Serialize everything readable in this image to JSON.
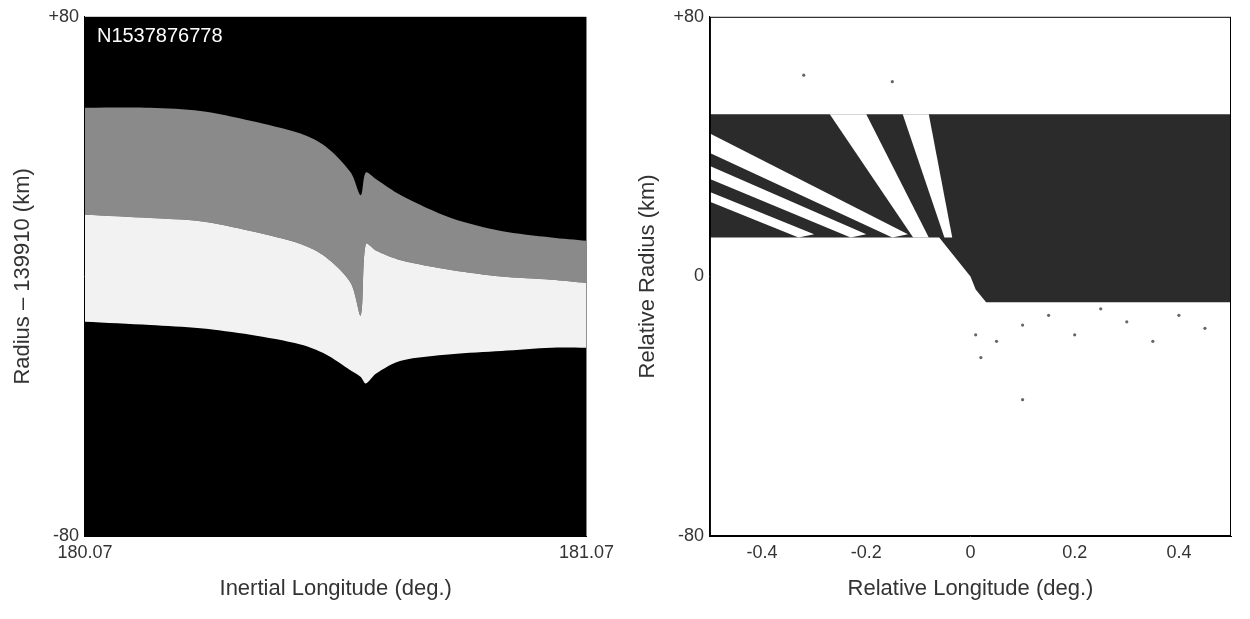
{
  "chart_data": [
    {
      "type": "band",
      "annotation": "N1537876778",
      "x_label": "Inertial Longitude (deg.)",
      "y_label": "Radius – 139910 (km)",
      "xlim": [
        180.07,
        181.07
      ],
      "xticks": [
        180.07,
        181.07
      ],
      "ylim": [
        -80,
        80
      ],
      "yticks": [
        -80,
        {
          "value": 80,
          "label": "+80"
        }
      ],
      "grid": false,
      "x": [
        180.07,
        180.2,
        180.3,
        180.4,
        180.5,
        180.55,
        180.6,
        180.62,
        180.63,
        180.65,
        180.7,
        180.8,
        180.9,
        181.0,
        181.07
      ],
      "bands": [
        {
          "color": "#f2f2f2",
          "lower": [
            -14,
            -15,
            -16,
            -18,
            -21,
            -24,
            -29,
            -31,
            -33,
            -30,
            -26,
            -24,
            -23,
            -22,
            -22
          ],
          "upper": [
            19,
            18,
            17,
            14,
            10,
            6,
            -2,
            -12,
            10,
            8,
            5,
            2,
            0,
            -1,
            -2
          ]
        },
        {
          "color": "#8a8a8a",
          "lower": [
            19,
            18,
            17,
            14,
            10,
            6,
            -2,
            -12,
            10,
            8,
            5,
            2,
            0,
            -1,
            -2
          ],
          "upper": [
            52,
            52,
            51,
            48,
            44,
            40,
            32,
            25,
            32,
            30,
            25,
            18,
            14,
            12,
            11
          ]
        }
      ]
    },
    {
      "type": "scatter",
      "x_label": "Relative Longitude (deg.)",
      "y_label": "Relative Radius (km)",
      "xlim": [
        -0.5,
        0.5
      ],
      "xticks": [
        -0.4,
        -0.2,
        0,
        0.2,
        0.4
      ],
      "ylim": [
        -80,
        80
      ],
      "yticks": [
        -80,
        0,
        {
          "value": 80,
          "label": "+80"
        }
      ],
      "grid": false,
      "regions": [
        {
          "color": "#2b2b2b",
          "points": [
            [
              -0.5,
              12
            ],
            [
              -0.06,
              12
            ],
            [
              -0.03,
              6
            ],
            [
              0,
              0
            ],
            [
              0.01,
              -4
            ],
            [
              0.03,
              -8
            ],
            [
              0.5,
              -8
            ],
            [
              0.5,
              50
            ],
            [
              -0.5,
              50
            ]
          ]
        },
        {
          "color": "#ffffff",
          "points": [
            [
              -0.13,
              50
            ],
            [
              -0.08,
              50
            ],
            [
              -0.035,
              12
            ],
            [
              -0.05,
              12
            ]
          ]
        },
        {
          "color": "#ffffff",
          "points": [
            [
              -0.27,
              50
            ],
            [
              -0.2,
              50
            ],
            [
              -0.08,
              12
            ],
            [
              -0.11,
              12
            ]
          ]
        },
        {
          "color": "#ffffff",
          "points": [
            [
              -0.5,
              44
            ],
            [
              -0.12,
              13
            ],
            [
              -0.15,
              12
            ],
            [
              -0.5,
              38
            ]
          ]
        },
        {
          "color": "#ffffff",
          "points": [
            [
              -0.5,
              34
            ],
            [
              -0.2,
              13
            ],
            [
              -0.23,
              12
            ],
            [
              -0.5,
              30
            ]
          ]
        },
        {
          "color": "#ffffff",
          "points": [
            [
              -0.5,
              26
            ],
            [
              -0.3,
              13
            ],
            [
              -0.33,
              12
            ],
            [
              -0.5,
              23
            ]
          ]
        }
      ],
      "points": {
        "color": "#666666",
        "x": [
          0.05,
          0.1,
          0.15,
          0.2,
          0.25,
          0.3,
          0.35,
          0.4,
          0.45,
          0.02,
          0.1,
          -0.32,
          -0.15,
          0.01
        ],
        "y": [
          -20,
          -15,
          -12,
          -18,
          -10,
          -14,
          -20,
          -12,
          -16,
          -25,
          -38,
          62,
          60,
          -18
        ]
      }
    }
  ]
}
